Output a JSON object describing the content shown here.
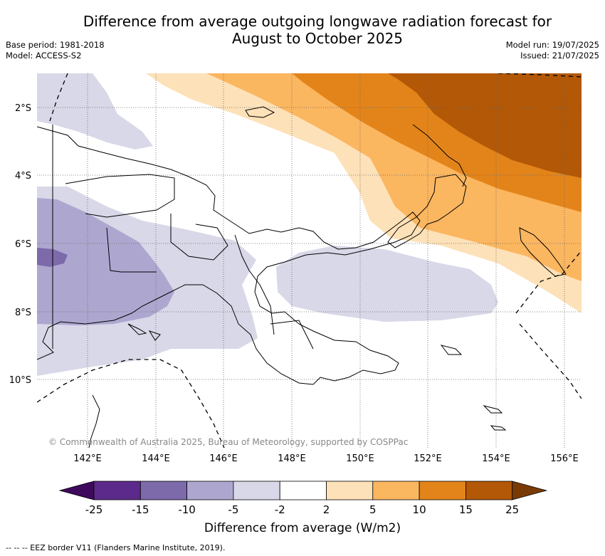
{
  "title_line1": "Difference from average outgoing longwave radiation forecast for",
  "title_line2": "August to October 2025",
  "base_period": "Base period: 1981-2018",
  "model": "Model: ACCESS-S2",
  "model_run": "Model run: 19/07/2025",
  "issued": "Issued: 21/07/2025",
  "copyright": "© Commonwealth of Australia 2025, Bureau of Meteorology, supported by COSPPac",
  "lat_labels": [
    "2°S",
    "4°S",
    "6°S",
    "8°S",
    "10°S"
  ],
  "lon_labels": [
    "142°E",
    "144°E",
    "146°E",
    "148°E",
    "150°E",
    "152°E",
    "154°E",
    "156°E"
  ],
  "colorbar": {
    "title": "Difference from average (W/m2)",
    "ticks": [
      "-25",
      "-15",
      "-10",
      "-5",
      "-2",
      "2",
      "5",
      "10",
      "15",
      "25"
    ],
    "colors": [
      "#3f0a5e",
      "#5c2a8a",
      "#7d6aaa",
      "#ada7d0",
      "#d8d8e8",
      "#ffffff",
      "#fde1b8",
      "#fbb660",
      "#e3841a",
      "#b25806",
      "#7a3a06"
    ]
  },
  "footnote": "-- -- -- EEZ border V11 (Flanders Marine Institute, 2019)."
}
